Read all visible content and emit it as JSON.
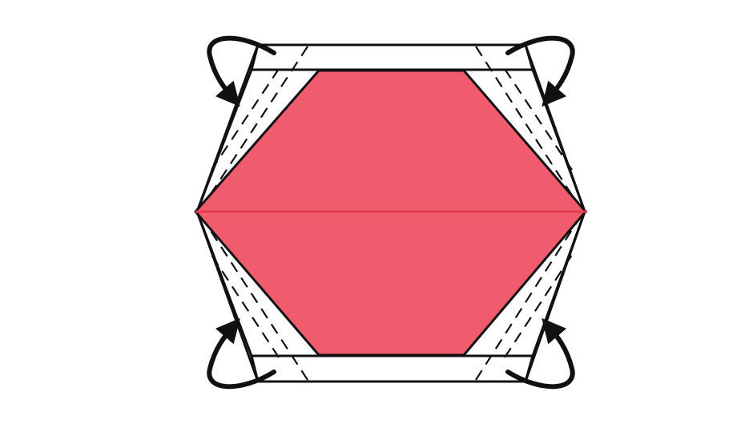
{
  "diagram": {
    "type": "origami-fold-step",
    "colors": {
      "paper_front": "#f05c6e",
      "crease_center": "#e23a50",
      "outline": "#111111",
      "background": "#ffffff",
      "paper_back": "#ffffff"
    },
    "icons": [
      "curved-fold-arrow-top-left",
      "curved-fold-arrow-top-right",
      "curved-fold-arrow-bottom-left",
      "curved-fold-arrow-bottom-right"
    ]
  }
}
